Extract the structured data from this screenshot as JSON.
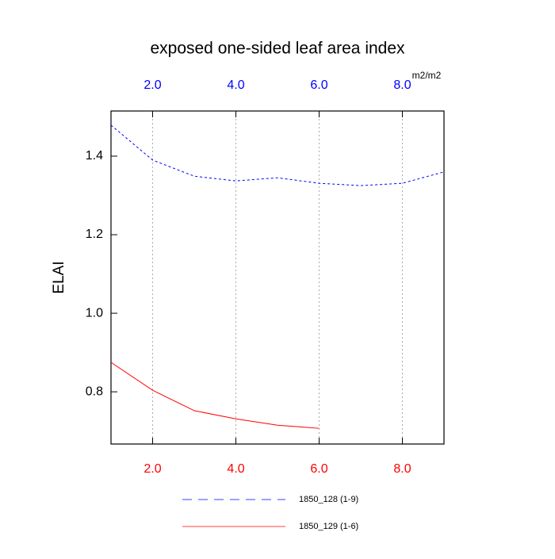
{
  "chart_data": {
    "type": "line",
    "title": "exposed one-sided leaf area index",
    "y_label": "ELAI",
    "units": "m2/m2",
    "xlim": [
      1,
      9
    ],
    "ylim": [
      0.667,
      1.515
    ],
    "xticks": [
      {
        "value": 2,
        "label": "2.0"
      },
      {
        "value": 4,
        "label": "4.0"
      },
      {
        "value": 6,
        "label": "6.0"
      },
      {
        "value": 8,
        "label": "8.0"
      }
    ],
    "yticks": [
      0.8,
      {
        "value": 1,
        "label": "1.0"
      },
      1.2,
      1.4
    ],
    "grid": true,
    "top_tick_color": "#0000ff",
    "bottom_tick_color": "#ff0000",
    "series": [
      {
        "name": "1850_128 (1-9)",
        "color": "#0000ff",
        "dashed": true,
        "x": [
          1,
          2,
          3,
          4,
          5,
          6,
          7,
          8,
          9
        ],
        "values": [
          1.479,
          1.39,
          1.349,
          1.337,
          1.345,
          1.331,
          1.325,
          1.331,
          1.36
        ]
      },
      {
        "name": "1850_129 (1-6)",
        "color": "#ff0000",
        "dashed": false,
        "x": [
          1,
          2,
          3,
          4,
          5,
          6
        ],
        "values": [
          0.875,
          0.804,
          0.752,
          0.731,
          0.715,
          0.707
        ]
      }
    ]
  }
}
